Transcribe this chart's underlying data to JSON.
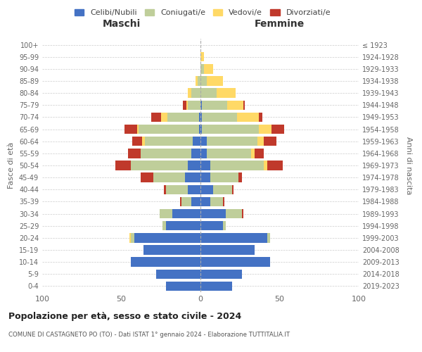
{
  "age_groups": [
    "0-4",
    "5-9",
    "10-14",
    "15-19",
    "20-24",
    "25-29",
    "30-34",
    "35-39",
    "40-44",
    "45-49",
    "50-54",
    "55-59",
    "60-64",
    "65-69",
    "70-74",
    "75-79",
    "80-84",
    "85-89",
    "90-94",
    "95-99",
    "100+"
  ],
  "birth_years": [
    "2019-2023",
    "2014-2018",
    "2009-2013",
    "2004-2008",
    "1999-2003",
    "1994-1998",
    "1989-1993",
    "1984-1988",
    "1979-1983",
    "1974-1978",
    "1969-1973",
    "1964-1968",
    "1959-1963",
    "1954-1958",
    "1949-1953",
    "1944-1948",
    "1939-1943",
    "1934-1938",
    "1929-1933",
    "1924-1928",
    "≤ 1923"
  ],
  "males": {
    "celibi": [
      22,
      28,
      44,
      36,
      42,
      22,
      18,
      6,
      8,
      10,
      8,
      6,
      5,
      1,
      1,
      0,
      0,
      0,
      0,
      0,
      0
    ],
    "coniugati": [
      0,
      0,
      0,
      0,
      2,
      2,
      8,
      6,
      14,
      20,
      36,
      32,
      30,
      38,
      20,
      8,
      6,
      2,
      0,
      0,
      0
    ],
    "vedovi": [
      0,
      0,
      0,
      0,
      1,
      0,
      0,
      0,
      0,
      0,
      0,
      0,
      2,
      1,
      4,
      1,
      2,
      1,
      0,
      0,
      0
    ],
    "divorziati": [
      0,
      0,
      0,
      0,
      0,
      0,
      0,
      1,
      1,
      8,
      10,
      8,
      6,
      8,
      6,
      2,
      0,
      0,
      0,
      0,
      0
    ]
  },
  "females": {
    "nubili": [
      20,
      26,
      44,
      34,
      42,
      14,
      16,
      6,
      8,
      6,
      6,
      4,
      4,
      1,
      1,
      1,
      0,
      0,
      0,
      0,
      0
    ],
    "coniugate": [
      0,
      0,
      0,
      0,
      2,
      2,
      10,
      8,
      12,
      18,
      34,
      28,
      32,
      36,
      22,
      16,
      10,
      4,
      2,
      0,
      0
    ],
    "vedove": [
      0,
      0,
      0,
      0,
      0,
      0,
      0,
      0,
      0,
      0,
      2,
      2,
      4,
      8,
      14,
      10,
      12,
      10,
      6,
      2,
      0
    ],
    "divorziate": [
      0,
      0,
      0,
      0,
      0,
      0,
      1,
      1,
      1,
      2,
      10,
      6,
      8,
      8,
      2,
      1,
      0,
      0,
      0,
      0,
      0
    ]
  },
  "colors": {
    "celibi_nubili": "#4472C4",
    "coniugati": "#BFCE9A",
    "vedovi": "#FFD966",
    "divorziati": "#C0392B"
  },
  "title": "Popolazione per età, sesso e stato civile - 2024",
  "subtitle": "COMUNE DI CASTAGNETO PO (TO) - Dati ISTAT 1° gennaio 2024 - Elaborazione TUTTITALIA.IT",
  "ylabel_left": "Fasce di età",
  "ylabel_right": "Anni di nascita",
  "xlabel_left": "Maschi",
  "xlabel_right": "Femmine",
  "xlim": 100,
  "legend_labels": [
    "Celibi/Nubili",
    "Coniugati/e",
    "Vedovi/e",
    "Divorziati/e"
  ],
  "background_color": "#ffffff"
}
